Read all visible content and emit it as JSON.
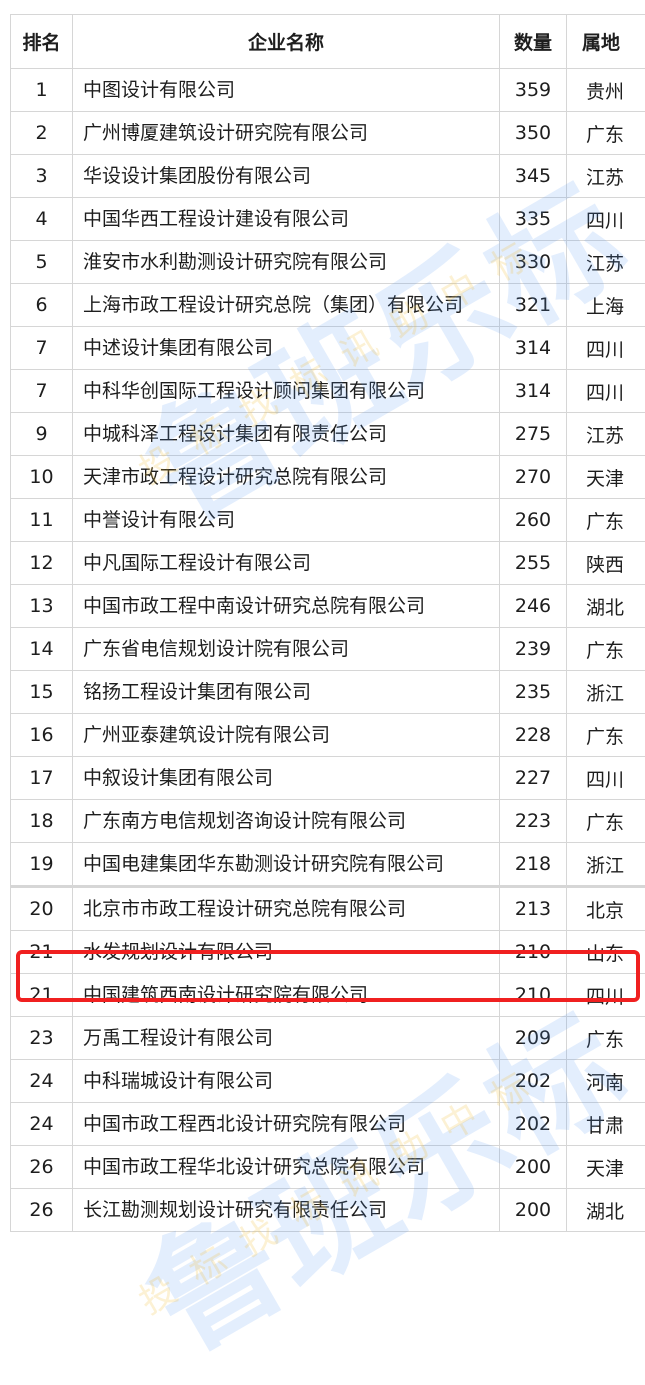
{
  "header": {
    "rank": "排名",
    "name": "企业名称",
    "count": "数量",
    "province": "属地"
  },
  "rows": [
    {
      "rank": "1",
      "name": "中图设计有限公司",
      "count": "359",
      "province": "贵州"
    },
    {
      "rank": "2",
      "name": "广州博厦建筑设计研究院有限公司",
      "count": "350",
      "province": "广东"
    },
    {
      "rank": "3",
      "name": "华设设计集团股份有限公司",
      "count": "345",
      "province": "江苏"
    },
    {
      "rank": "4",
      "name": "中国华西工程设计建设有限公司",
      "count": "335",
      "province": "四川"
    },
    {
      "rank": "5",
      "name": "淮安市水利勘测设计研究院有限公司",
      "count": "330",
      "province": "江苏"
    },
    {
      "rank": "6",
      "name": "上海市政工程设计研究总院（集团）有限公司",
      "count": "321",
      "province": "上海"
    },
    {
      "rank": "7",
      "name": "中述设计集团有限公司",
      "count": "314",
      "province": "四川"
    },
    {
      "rank": "7",
      "name": "中科华创国际工程设计顾问集团有限公司",
      "count": "314",
      "province": "四川"
    },
    {
      "rank": "9",
      "name": "中城科泽工程设计集团有限责任公司",
      "count": "275",
      "province": "江苏"
    },
    {
      "rank": "10",
      "name": "天津市政工程设计研究总院有限公司",
      "count": "270",
      "province": "天津"
    },
    {
      "rank": "11",
      "name": "中誉设计有限公司",
      "count": "260",
      "province": "广东"
    },
    {
      "rank": "12",
      "name": "中凡国际工程设计有限公司",
      "count": "255",
      "province": "陕西"
    },
    {
      "rank": "13",
      "name": "中国市政工程中南设计研究总院有限公司",
      "count": "246",
      "province": "湖北"
    },
    {
      "rank": "14",
      "name": "广东省电信规划设计院有限公司",
      "count": "239",
      "province": "广东"
    },
    {
      "rank": "15",
      "name": "铭扬工程设计集团有限公司",
      "count": "235",
      "province": "浙江"
    },
    {
      "rank": "16",
      "name": "广州亚泰建筑设计院有限公司",
      "count": "228",
      "province": "广东"
    },
    {
      "rank": "17",
      "name": "中叙设计集团有限公司",
      "count": "227",
      "province": "四川"
    },
    {
      "rank": "18",
      "name": "广东南方电信规划咨询设计院有限公司",
      "count": "223",
      "province": "广东"
    },
    {
      "rank": "19",
      "name": "中国电建集团华东勘测设计研究院有限公司",
      "count": "218",
      "province": "浙江"
    },
    {
      "rank": "20",
      "name": "北京市市政工程设计研究总院有限公司",
      "count": "213",
      "province": "北京"
    },
    {
      "rank": "21",
      "name": "水发规划设计有限公司",
      "count": "210",
      "province": "山东",
      "highlighted": true
    },
    {
      "rank": "21",
      "name": "中国建筑西南设计研究院有限公司",
      "count": "210",
      "province": "四川"
    },
    {
      "rank": "23",
      "name": "万禹工程设计有限公司",
      "count": "209",
      "province": "广东"
    },
    {
      "rank": "24",
      "name": "中科瑞城设计有限公司",
      "count": "202",
      "province": "河南"
    },
    {
      "rank": "24",
      "name": "中国市政工程西北设计研究院有限公司",
      "count": "202",
      "province": "甘肃"
    },
    {
      "rank": "26",
      "name": "中国市政工程华北设计研究总院有限公司",
      "count": "200",
      "province": "天津"
    },
    {
      "rank": "26",
      "name": "长江勘测规划设计研究有限责任公司",
      "count": "200",
      "province": "湖北"
    }
  ],
  "highlight_color": "#f02020",
  "watermark": {
    "main": "鲁班乐标®",
    "sub": "投标 找 标讯 助中标"
  }
}
